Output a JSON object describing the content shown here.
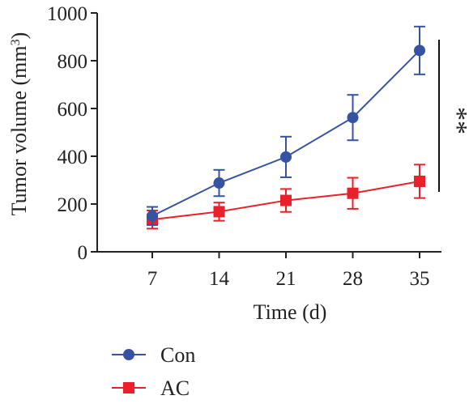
{
  "chart_data": {
    "type": "line",
    "x": [
      7,
      14,
      21,
      28,
      35
    ],
    "series": [
      {
        "name": "Con",
        "color": "#3552a3",
        "marker": "circle",
        "values": [
          150,
          288,
          397,
          562,
          843
        ],
        "errors": [
          38,
          55,
          85,
          95,
          100
        ]
      },
      {
        "name": "AC",
        "color": "#e8212a",
        "marker": "square",
        "values": [
          135,
          168,
          215,
          245,
          295
        ],
        "errors": [
          38,
          38,
          48,
          65,
          70
        ]
      }
    ],
    "xlabel": "Time (d)",
    "ylabel_main": "Tumor volume (mm",
    "ylabel_sup": "3",
    "ylabel_close": ")",
    "xticks": [
      "7",
      "14",
      "21",
      "28",
      "35"
    ],
    "yticks": [
      "0",
      "200",
      "400",
      "600",
      "800",
      "1000"
    ],
    "ytick_values": [
      0,
      200,
      400,
      600,
      800,
      1000
    ],
    "ylim": [
      0,
      1000
    ],
    "grid": false,
    "legend_position": "bottom-left",
    "significance": "**"
  }
}
